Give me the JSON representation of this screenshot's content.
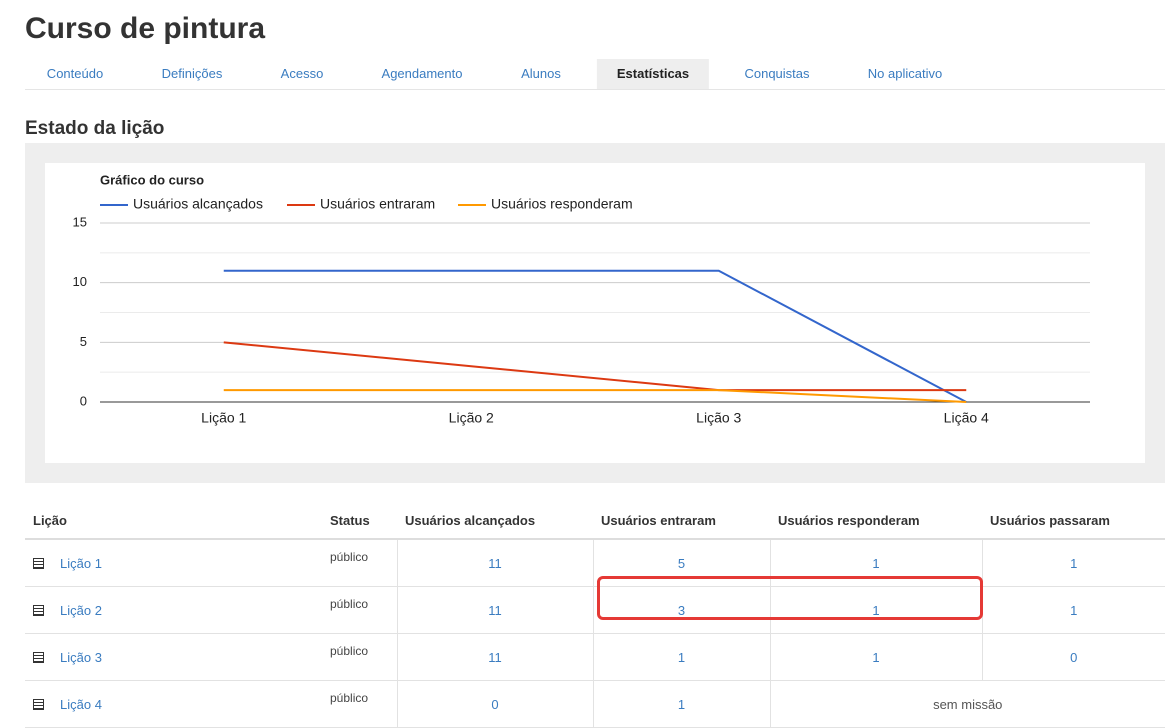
{
  "header": {
    "title": "Curso de pintura",
    "tabs": [
      "Conteúdo",
      "Definições",
      "Acesso",
      "Agendamento",
      "Alunos",
      "Estatísticas",
      "Conquistas",
      "No aplicativo"
    ],
    "active_tab": 5
  },
  "section_title": "Estado da lição",
  "chart_data": {
    "type": "line",
    "title": "Gráfico do curso",
    "categories": [
      "Lição 1",
      "Lição 2",
      "Lição 3",
      "Lição 4"
    ],
    "series": [
      {
        "name": "Usuários alcançados",
        "color": "#3366cc",
        "values": [
          11,
          11,
          11,
          0
        ]
      },
      {
        "name": "Usuários entraram",
        "color": "#dc3912",
        "values": [
          5,
          3,
          1,
          1
        ]
      },
      {
        "name": "Usuários responderam",
        "color": "#ff9900",
        "values": [
          1,
          1,
          1,
          0
        ]
      }
    ],
    "ylim": [
      0,
      15
    ],
    "yticks": [
      0,
      5,
      10,
      15
    ],
    "minor_yticks": [
      2.5,
      7.5,
      12.5
    ],
    "grid": true
  },
  "table": {
    "columns": [
      "Lição",
      "Status",
      "Usuários alcançados",
      "Usuários entraram",
      "Usuários responderam",
      "Usuários passaram"
    ],
    "rows": [
      [
        "Lição 1",
        "público",
        11,
        5,
        1,
        1
      ],
      [
        "Lição 2",
        "público",
        11,
        3,
        1,
        1
      ],
      [
        "Lição 3",
        "público",
        11,
        1,
        1,
        0
      ],
      [
        "Lição 4",
        "público",
        0,
        1,
        "sem missão"
      ]
    ]
  }
}
